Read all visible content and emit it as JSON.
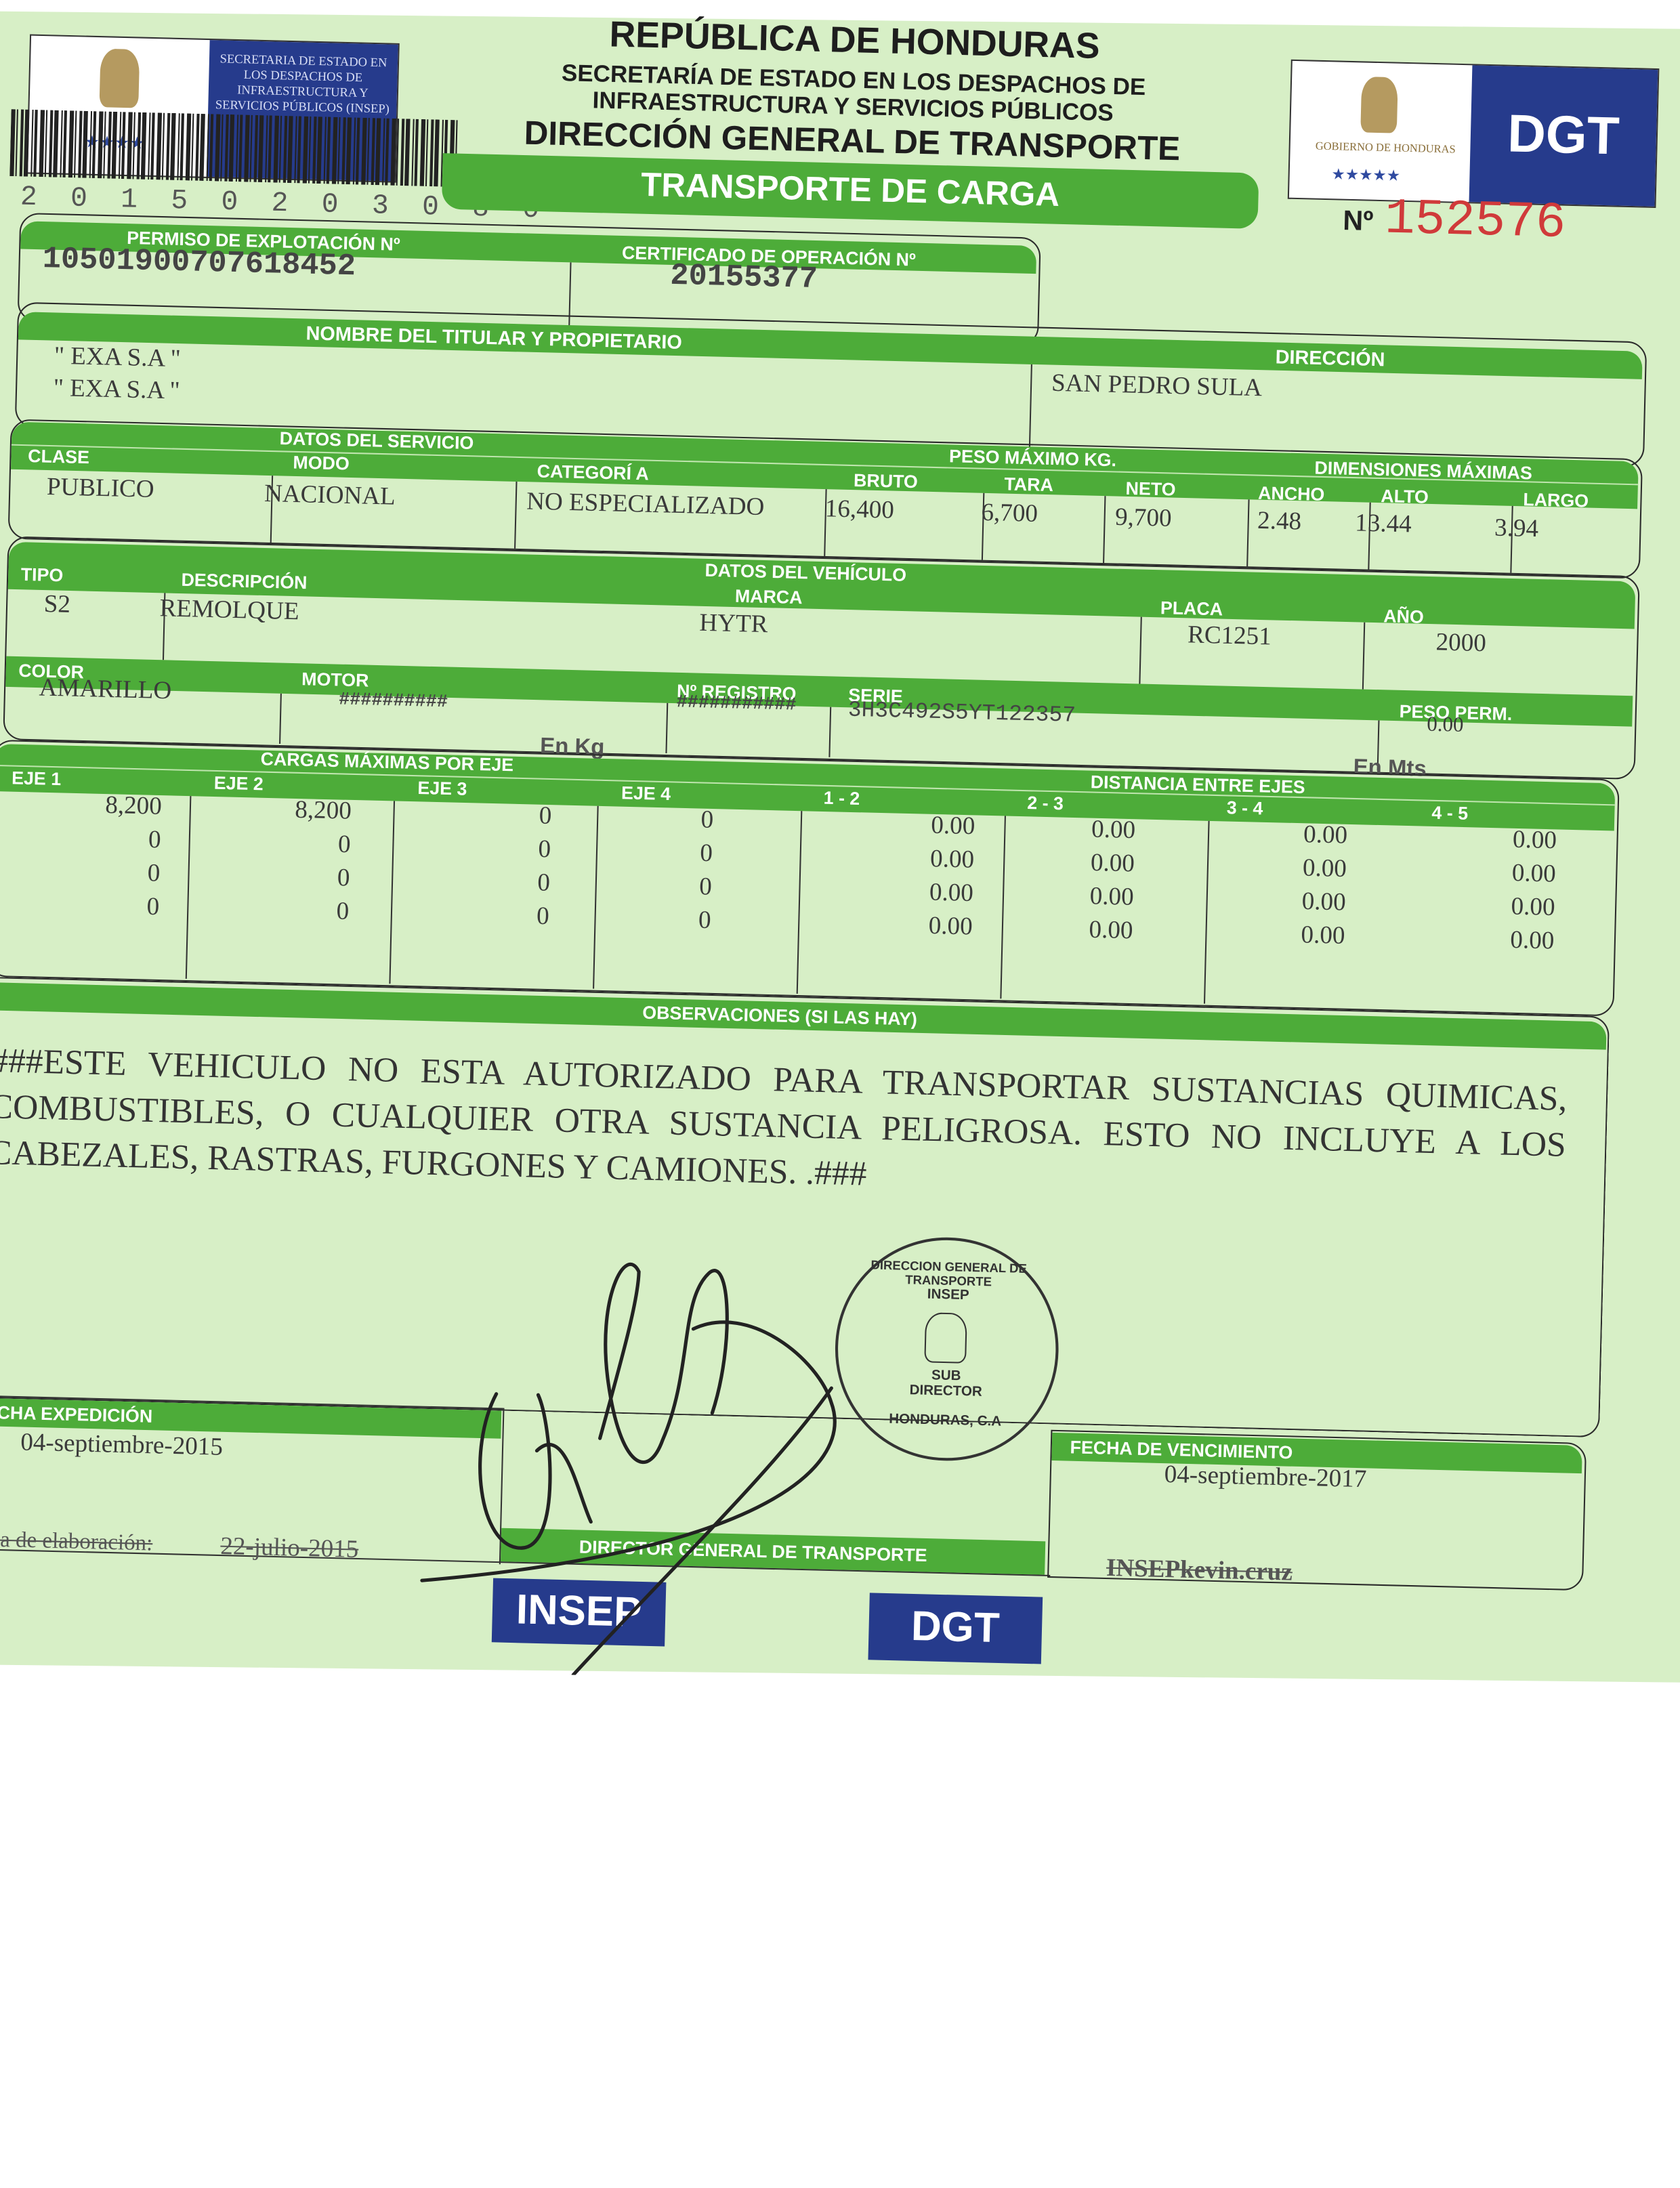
{
  "header": {
    "country": "REPÚBLICA DE HONDURAS",
    "ministry_line1": "SECRETARÍA DE ESTADO EN LOS DESPACHOS DE",
    "ministry_line2": "INFRAESTRUCTURA Y SERVICIOS PÚBLICOS",
    "directorate": "DIRECCIÓN GENERAL DE TRANSPORTE",
    "document_type": "TRANSPORTE DE CARGA",
    "barcode_number": "2 0 1 5 0 2 0 3 0 8 0",
    "left_logo_text": "SECRETARIA DE ESTADO EN LOS DESPACHOS DE INFRAESTRUCTURA Y SERVICIOS PÚBLICOS (INSEP)",
    "right_logo_caption": "GOBIERNO DE HONDURAS",
    "right_logo_brand": "DGT",
    "number_label": "Nº",
    "number_value": "152576"
  },
  "colors": {
    "green": "#4dac39",
    "paper": "#d7efc6",
    "blue": "#263b8c",
    "serial_red": "#d03a3a"
  },
  "permit": {
    "permiso_label": "PERMISO DE EXPLOTACIÓN Nº",
    "permiso_value": "10501900707618452",
    "certificado_label": "CERTIFICADO DE OPERACIÓN Nº",
    "certificado_value": "20155377"
  },
  "owner": {
    "label": "NOMBRE DEL TITULAR Y PROPIETARIO",
    "name_line1": "\" EXA S.A \"",
    "name_line2": "\" EXA S.A \"",
    "address_label": "DIRECCIÓN",
    "address_value": "SAN PEDRO SULA"
  },
  "service": {
    "section_label": "DATOS DEL SERVICIO",
    "clase_label": "CLASE",
    "clase": "PUBLICO",
    "modo_label": "MODO",
    "modo": "NACIONAL",
    "categoria_label": "CATEGORÍ A",
    "categoria": "NO ESPECIALIZADO",
    "peso_label": "PESO MÁXIMO KG.",
    "bruto_label": "BRUTO",
    "bruto": "16,400",
    "tara_label": "TARA",
    "tara": "6,700",
    "neto_label": "NETO",
    "neto": "9,700",
    "dim_label": "DIMENSIONES MÁXIMAS",
    "ancho_label": "ANCHO",
    "ancho": "2.48",
    "alto_label": "ALTO",
    "alto": "13.44",
    "largo_label": "LARGO",
    "largo": "3.94"
  },
  "vehicle": {
    "section_label": "DATOS DEL VEHÍCULO",
    "tipo_label": "TIPO",
    "tipo": "S2",
    "descripcion_label": "DESCRIPCIÓN",
    "descripcion": "REMOLQUE",
    "marca_label": "MARCA",
    "marca": "HYTR",
    "placa_label": "PLACA",
    "placa": "RC1251",
    "anio_label": "AÑO",
    "anio": "2000",
    "color_label": "COLOR",
    "color": "AMARILLO",
    "motor_label": "MOTOR",
    "motor": "##########",
    "registro_label": "Nº REGISTRO",
    "registro": "###########",
    "serie_label": "SERIE",
    "serie": "3H3C492S5YT122357",
    "peso_perm_label": "PESO PERM.",
    "peso_perm": "0.00",
    "unit_kg": "En Kg",
    "unit_mts": "En Mts"
  },
  "axles": {
    "cargas_label": "CARGAS MÁXIMAS POR EJE",
    "distancia_label": "DISTANCIA ENTRE EJES",
    "columns": [
      {
        "label": "EJE 1",
        "values": [
          "8,200",
          "0",
          "0",
          "0"
        ]
      },
      {
        "label": "EJE 2",
        "values": [
          "8,200",
          "0",
          "0",
          "0"
        ]
      },
      {
        "label": "EJE 3",
        "values": [
          "0",
          "0",
          "0",
          "0"
        ]
      },
      {
        "label": "EJE 4",
        "values": [
          "0",
          "0",
          "0",
          "0"
        ]
      },
      {
        "label": "1 - 2",
        "values": [
          "0.00",
          "0.00",
          "0.00",
          "0.00"
        ]
      },
      {
        "label": "2 - 3",
        "values": [
          "0.00",
          "0.00",
          "0.00",
          "0.00"
        ]
      },
      {
        "label": "3 - 4",
        "values": [
          "0.00",
          "0.00",
          "0.00",
          "0.00"
        ]
      },
      {
        "label": "4 - 5",
        "values": [
          "0.00",
          "0.00",
          "0.00",
          "0.00"
        ]
      }
    ]
  },
  "observations": {
    "label": "OBSERVACIONES (SI LAS HAY)",
    "text": "###ESTE VEHICULO NO ESTA AUTORIZADO PARA TRANSPORTAR SUSTANCIAS QUIMICAS, COMBUSTIBLES, O CUALQUIER OTRA SUSTANCIA PELIGROSA. ESTO NO INCLUYE A LOS CABEZALES, RASTRAS, FURGONES Y CAMIONES. .###"
  },
  "footer": {
    "expedicion_label": "FECHA EXPEDICIÓN",
    "expedicion": "04-septiembre-2015",
    "elaboracion_label": "Fecha de elaboración:",
    "elaboracion": "22-julio-2015",
    "director_label": "DIRECTOR GENERAL DE TRANSPORTE",
    "vencimiento_label": "FECHA DE VENCIMIENTO",
    "vencimiento": "04-septiembre-2017",
    "user": "INSEPkevin.cruz",
    "badge_insep": "INSEP",
    "badge_dgt": "DGT",
    "stamp_text_top": "DIRECCION GENERAL DE TRANSPORTE",
    "stamp_text_center": "INSEP",
    "stamp_sub": "SUB DIRECTOR",
    "stamp_bottom": "HONDURAS, C.A"
  }
}
